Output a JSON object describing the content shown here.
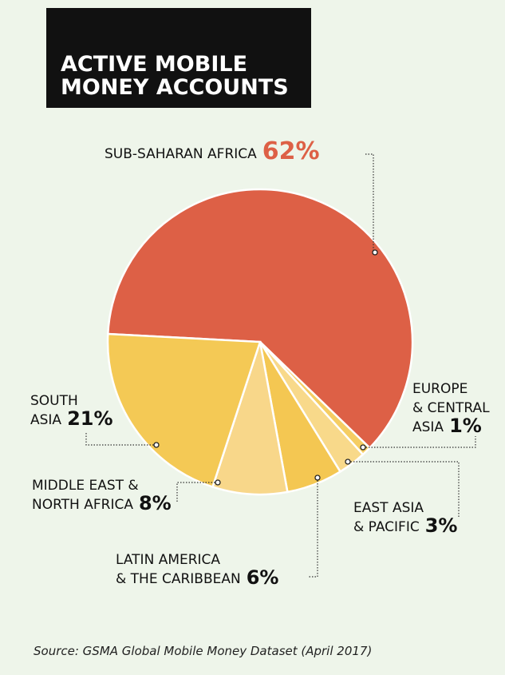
{
  "chart_data": {
    "type": "pie",
    "title": "ACTIVE MOBILE MONEY ACCOUNTS",
    "categories": [
      "SUB-SAHARAN AFRICA",
      "EUROPE & CENTRAL ASIA",
      "EAST ASIA & PACIFIC",
      "LATIN AMERICA & THE CARIBBEAN",
      "MIDDLE EAST & NORTH AFRICA",
      "SOUTH ASIA"
    ],
    "values": [
      62,
      1,
      3,
      6,
      8,
      21
    ],
    "value_labels": [
      "62%",
      "1%",
      "3%",
      "6%",
      "8%",
      "21%"
    ],
    "colors": [
      "#dd6046",
      "#f5cd63",
      "#f8d98a",
      "#f4c752",
      "#f8d78a",
      "#f4c955"
    ],
    "source": "Source: GSMA Global Mobile Money Dataset (April 2017)"
  }
}
